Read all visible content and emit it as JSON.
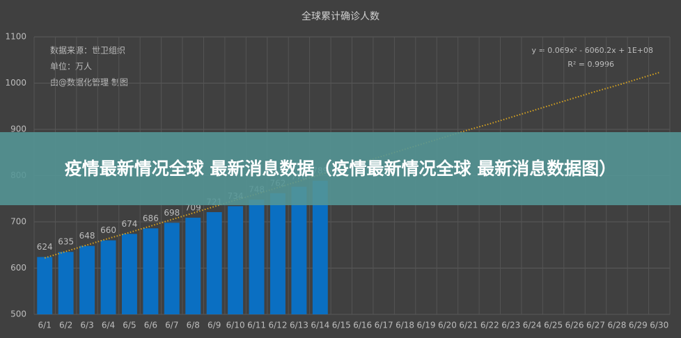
{
  "chart_data": {
    "type": "bar",
    "title": "全球累计确诊人数",
    "annotations": [
      "数据来源：世卫组织",
      "单位：万人",
      "由@数据化管理 制图"
    ],
    "trendline_labels": [
      "y = 0.069x² - 6060.2x + 1E+08",
      "R² = 0.9996"
    ],
    "categories": [
      "6/1",
      "6/2",
      "6/3",
      "6/4",
      "6/5",
      "6/6",
      "6/7",
      "6/8",
      "6/9",
      "6/10",
      "6/11",
      "6/12",
      "6/13",
      "6/14",
      "6/15",
      "6/16",
      "6/17",
      "6/18",
      "6/19",
      "6/20",
      "6/21",
      "6/22",
      "6/23",
      "6/24",
      "6/25",
      "6/26",
      "6/27",
      "6/28",
      "6/29",
      "6/30"
    ],
    "series": [
      {
        "kind": "bar",
        "color": "#0a6fc2",
        "values": [
          624,
          635,
          648,
          660,
          674,
          686,
          698,
          709,
          721,
          734,
          748,
          762,
          776,
          789,
          null,
          null,
          null,
          null,
          null,
          null,
          null,
          null,
          null,
          null,
          null,
          null,
          null,
          null,
          null,
          null
        ]
      },
      {
        "kind": "trendline",
        "color": "#d9a520",
        "values": [
          622,
          636,
          650,
          664,
          677,
          691,
          705,
          719,
          733,
          747,
          760,
          774,
          788,
          802,
          816,
          829,
          843,
          857,
          871,
          885,
          899,
          912,
          926,
          940,
          954,
          968,
          982,
          995,
          1009,
          1023
        ]
      }
    ],
    "ylim": [
      500,
      1100
    ],
    "yticks": [
      500,
      600,
      700,
      800,
      900,
      1000,
      1100
    ],
    "grid": true
  },
  "overlay": {
    "text": "疫情最新情况全球 最新消息数据（疫情最新情况全球 最新消息数据图）"
  }
}
